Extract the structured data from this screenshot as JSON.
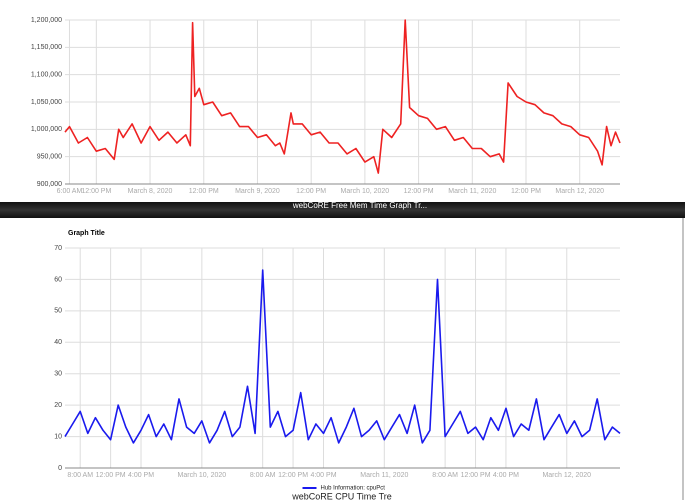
{
  "chart_data": [
    {
      "type": "line",
      "title": "webCoRE Free Mem Time Graph Tr...",
      "x": [
        5,
        6,
        8,
        10,
        12,
        14,
        16,
        17,
        18,
        20,
        22,
        24,
        26,
        28,
        30,
        32,
        33,
        33.5,
        34,
        35,
        36,
        38,
        40,
        42,
        44,
        46,
        48,
        50,
        52,
        53,
        54,
        55.5,
        56,
        58,
        60,
        62,
        64,
        66,
        68,
        70,
        72,
        74,
        75,
        76,
        78,
        80,
        81,
        82,
        84,
        86,
        88,
        90,
        92,
        94,
        96,
        98,
        100,
        102,
        103,
        104,
        106,
        108,
        110,
        112,
        114,
        116,
        118,
        120,
        122,
        124,
        125,
        126,
        127,
        128,
        129
      ],
      "series": [
        {
          "color": "#ee2222",
          "values": [
            995000,
            1005000,
            975000,
            985000,
            960000,
            965000,
            945000,
            1000000,
            985000,
            1010000,
            975000,
            1005000,
            980000,
            995000,
            975000,
            990000,
            970000,
            1195000,
            1060000,
            1075000,
            1045000,
            1050000,
            1025000,
            1030000,
            1005000,
            1005000,
            985000,
            990000,
            970000,
            975000,
            955000,
            1030000,
            1010000,
            1010000,
            990000,
            995000,
            975000,
            975000,
            955000,
            965000,
            940000,
            950000,
            920000,
            1000000,
            985000,
            1010000,
            1200000,
            1040000,
            1025000,
            1020000,
            1000000,
            1005000,
            980000,
            985000,
            965000,
            965000,
            950000,
            955000,
            940000,
            1085000,
            1060000,
            1050000,
            1045000,
            1030000,
            1025000,
            1010000,
            1005000,
            990000,
            985000,
            960000,
            935000,
            1005000,
            970000,
            995000,
            975000
          ]
        }
      ],
      "xlim": [
        5,
        129
      ],
      "xticks": [
        {
          "value": 6,
          "label": "6:00 AM"
        },
        {
          "value": 12,
          "label": "12:00 PM"
        },
        {
          "value": 24,
          "label": "March 8, 2020"
        },
        {
          "value": 36,
          "label": "12:00 PM"
        },
        {
          "value": 48,
          "label": "March 9, 2020"
        },
        {
          "value": 60,
          "label": "12:00 PM"
        },
        {
          "value": 72,
          "label": "March 10, 2020"
        },
        {
          "value": 84,
          "label": "12:00 PM"
        },
        {
          "value": 96,
          "label": "March 11, 2020"
        },
        {
          "value": 108,
          "label": "12:00 PM"
        },
        {
          "value": 120,
          "label": "March 12, 2020"
        }
      ],
      "ylim": [
        900000,
        1200000
      ],
      "yticks": [
        {
          "value": 900000,
          "label": "900,000"
        },
        {
          "value": 950000,
          "label": "950,000"
        },
        {
          "value": 1000000,
          "label": "1,000,000"
        },
        {
          "value": 1050000,
          "label": "1,050,000"
        },
        {
          "value": 1100000,
          "label": "1,100,000"
        },
        {
          "value": 1150000,
          "label": "1,150,000"
        },
        {
          "value": 1200000,
          "label": "1,200,000"
        }
      ],
      "grid": true
    },
    {
      "type": "line",
      "title": "Graph Title",
      "subtitle": "webCoRE CPU Time Tre",
      "x": [
        6,
        7,
        8,
        9,
        10,
        11,
        12,
        13,
        14,
        15,
        16,
        17,
        18,
        19,
        20,
        21,
        22,
        23,
        24,
        25,
        26,
        27,
        28,
        29,
        30,
        31,
        32,
        33,
        34,
        35,
        36,
        37,
        38,
        39,
        40,
        41,
        42,
        43,
        44,
        45,
        46,
        47,
        48,
        49,
        50,
        51,
        52,
        53,
        54,
        55,
        56,
        57,
        58,
        59,
        60,
        61,
        62,
        63,
        64,
        65,
        66,
        67,
        68,
        69,
        70,
        71,
        72,
        73,
        74,
        75,
        76,
        77,
        78,
        79
      ],
      "series": [
        {
          "name": "Hub Information: cpuPct",
          "color": "#1a1aee",
          "values": [
            10,
            14,
            18,
            11,
            16,
            12,
            9,
            20,
            13,
            8,
            12,
            17,
            10,
            14,
            9,
            22,
            13,
            11,
            15,
            8,
            12,
            18,
            10,
            13,
            26,
            11,
            63,
            13,
            18,
            10,
            12,
            24,
            9,
            14,
            11,
            16,
            8,
            13,
            19,
            10,
            12,
            15,
            9,
            13,
            17,
            11,
            20,
            8,
            12,
            60,
            10,
            14,
            18,
            11,
            13,
            9,
            16,
            12,
            19,
            10,
            14,
            12,
            22,
            9,
            13,
            17,
            11,
            15,
            10,
            12,
            22,
            9,
            13,
            11
          ]
        }
      ],
      "xlim": [
        6,
        79
      ],
      "xticks": [
        {
          "value": 8,
          "label": "8:00 AM"
        },
        {
          "value": 12,
          "label": "12:00 PM"
        },
        {
          "value": 16,
          "label": "4:00 PM"
        },
        {
          "value": 24,
          "label": "March 10, 2020"
        },
        {
          "value": 32,
          "label": "8:00 AM"
        },
        {
          "value": 36,
          "label": "12:00 PM"
        },
        {
          "value": 40,
          "label": "4:00 PM"
        },
        {
          "value": 48,
          "label": "March 11, 2020"
        },
        {
          "value": 56,
          "label": "8:00 AM"
        },
        {
          "value": 60,
          "label": "12:00 PM"
        },
        {
          "value": 64,
          "label": "4:00 PM"
        },
        {
          "value": 72,
          "label": "March 12, 2020"
        }
      ],
      "ylim": [
        0,
        70
      ],
      "yticks": [
        0,
        10,
        20,
        30,
        40,
        50,
        60,
        70
      ],
      "grid": true,
      "legend": "bottom"
    }
  ]
}
